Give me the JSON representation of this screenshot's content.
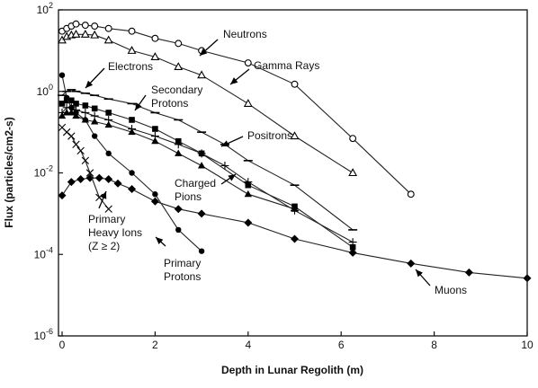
{
  "chart_data": {
    "type": "line",
    "title": "",
    "xlabel": "Depth in Lunar Regolith (m)",
    "ylabel": "Flux (particles/cm2-s)",
    "xlim": [
      0,
      10
    ],
    "ylim": [
      1e-06,
      100
    ],
    "y_scale": "log",
    "grid": false,
    "x_ticks": [
      0,
      2,
      4,
      6,
      8,
      10
    ],
    "x_tick_labels": [
      "0",
      "2",
      "4",
      "6",
      "8",
      "10"
    ],
    "y_ticks": [
      100,
      1,
      0.01,
      0.0001,
      1e-06
    ],
    "y_tick_labels": [
      {
        "base": "10",
        "exp": "2"
      },
      {
        "base": "10",
        "exp": "0"
      },
      {
        "base": "10",
        "exp": "-2"
      },
      {
        "base": "10",
        "exp": "-4"
      },
      {
        "base": "10",
        "exp": "-6"
      }
    ],
    "series": [
      {
        "name": "Neutrons",
        "marker": "open-circle",
        "x": [
          0,
          0.1,
          0.2,
          0.3,
          0.5,
          0.7,
          1.0,
          1.5,
          2.0,
          2.5,
          3.0,
          4.0,
          5.0,
          6.25,
          7.5
        ],
        "y": [
          30,
          35,
          40,
          45,
          42,
          40,
          35,
          30,
          20,
          15,
          10,
          5,
          1.5,
          0.07,
          0.003
        ]
      },
      {
        "name": "Gamma Rays",
        "marker": "open-triangle",
        "x": [
          0,
          0.1,
          0.2,
          0.3,
          0.5,
          0.7,
          1.0,
          1.5,
          2.0,
          2.5,
          3.0,
          4.0,
          5.0,
          6.25
        ],
        "y": [
          18,
          22,
          24,
          25,
          25,
          24,
          18,
          10,
          7,
          4,
          2.5,
          0.5,
          0.08,
          0.01
        ]
      },
      {
        "name": "Electrons",
        "marker": "dash",
        "x": [
          0,
          0.1,
          0.2,
          0.3,
          0.5,
          0.7,
          1.0,
          1.5,
          2.0,
          2.5,
          3.0,
          3.5,
          4.0,
          5.0,
          6.25
        ],
        "y": [
          0.8,
          1.0,
          1.1,
          1.0,
          0.9,
          0.8,
          0.65,
          0.5,
          0.3,
          0.2,
          0.1,
          0.05,
          0.02,
          0.005,
          0.0004
        ]
      },
      {
        "name": "Secondary Protons",
        "marker": "filled-square",
        "x": [
          0,
          0.1,
          0.2,
          0.3,
          0.5,
          0.7,
          1.0,
          1.5,
          2.0,
          2.5,
          3.0,
          4.0,
          5.0,
          6.25
        ],
        "y": [
          0.5,
          0.6,
          0.6,
          0.5,
          0.45,
          0.38,
          0.3,
          0.2,
          0.12,
          0.06,
          0.03,
          0.005,
          0.0015,
          0.00015
        ]
      },
      {
        "name": "Positrons",
        "marker": "plus",
        "x": [
          0,
          0.1,
          0.2,
          0.3,
          0.5,
          0.7,
          1.0,
          1.5,
          2.0,
          2.5,
          3.0,
          3.5,
          4.0,
          5.0,
          6.25
        ],
        "y": [
          0.3,
          0.4,
          0.4,
          0.35,
          0.3,
          0.25,
          0.2,
          0.12,
          0.08,
          0.05,
          0.03,
          0.015,
          0.006,
          0.0012,
          0.0002
        ]
      },
      {
        "name": "Charged Pions",
        "marker": "filled-triangle",
        "x": [
          0,
          0.1,
          0.2,
          0.3,
          0.5,
          0.7,
          1.0,
          1.5,
          2.0,
          2.5,
          3.0,
          4.0,
          5.0
        ],
        "y": [
          0.25,
          0.3,
          0.3,
          0.25,
          0.2,
          0.18,
          0.15,
          0.1,
          0.06,
          0.03,
          0.015,
          0.003,
          0.0013
        ]
      },
      {
        "name": "Primary Protons",
        "marker": "filled-circle",
        "x": [
          0,
          0.1,
          0.2,
          0.3,
          0.5,
          0.7,
          1.0,
          1.5,
          2.0,
          2.5,
          3.0
        ],
        "y": [
          2.5,
          0.7,
          0.4,
          0.3,
          0.2,
          0.08,
          0.03,
          0.01,
          0.003,
          0.0004,
          0.00012
        ]
      },
      {
        "name": "Muons",
        "marker": "filled-diamond",
        "x": [
          0,
          0.2,
          0.4,
          0.6,
          0.8,
          1.0,
          1.2,
          1.5,
          2.0,
          2.5,
          3.0,
          4.0,
          5.0,
          6.25,
          7.5,
          8.75,
          10.0
        ],
        "y": [
          0.0028,
          0.006,
          0.007,
          0.0075,
          0.0075,
          0.007,
          0.0055,
          0.004,
          0.002,
          0.0013,
          0.001,
          0.0006,
          0.00024,
          0.00011,
          6e-05,
          3.6e-05,
          2.6e-05
        ]
      },
      {
        "name": "Primary Heavy Ions (Z ≥ 2)",
        "marker": "x",
        "x": [
          0,
          0.1,
          0.2,
          0.3,
          0.4,
          0.5,
          0.6,
          0.8,
          1.0
        ],
        "y": [
          0.13,
          0.1,
          0.08,
          0.05,
          0.035,
          0.02,
          0.01,
          0.0025,
          0.0013
        ]
      }
    ],
    "annotations": [
      {
        "lines": [
          "Neutrons"
        ]
      },
      {
        "lines": [
          "Gamma Rays"
        ]
      },
      {
        "lines": [
          "Electrons"
        ]
      },
      {
        "lines": [
          "Secondary",
          "Protons"
        ]
      },
      {
        "lines": [
          "Positrons"
        ]
      },
      {
        "lines": [
          "Charged",
          "Pions"
        ]
      },
      {
        "lines": [
          "Primary",
          "Heavy Ions",
          "(Z ≥ 2)"
        ]
      },
      {
        "lines": [
          "Primary",
          "Protons"
        ]
      },
      {
        "lines": [
          "Muons"
        ]
      }
    ]
  }
}
